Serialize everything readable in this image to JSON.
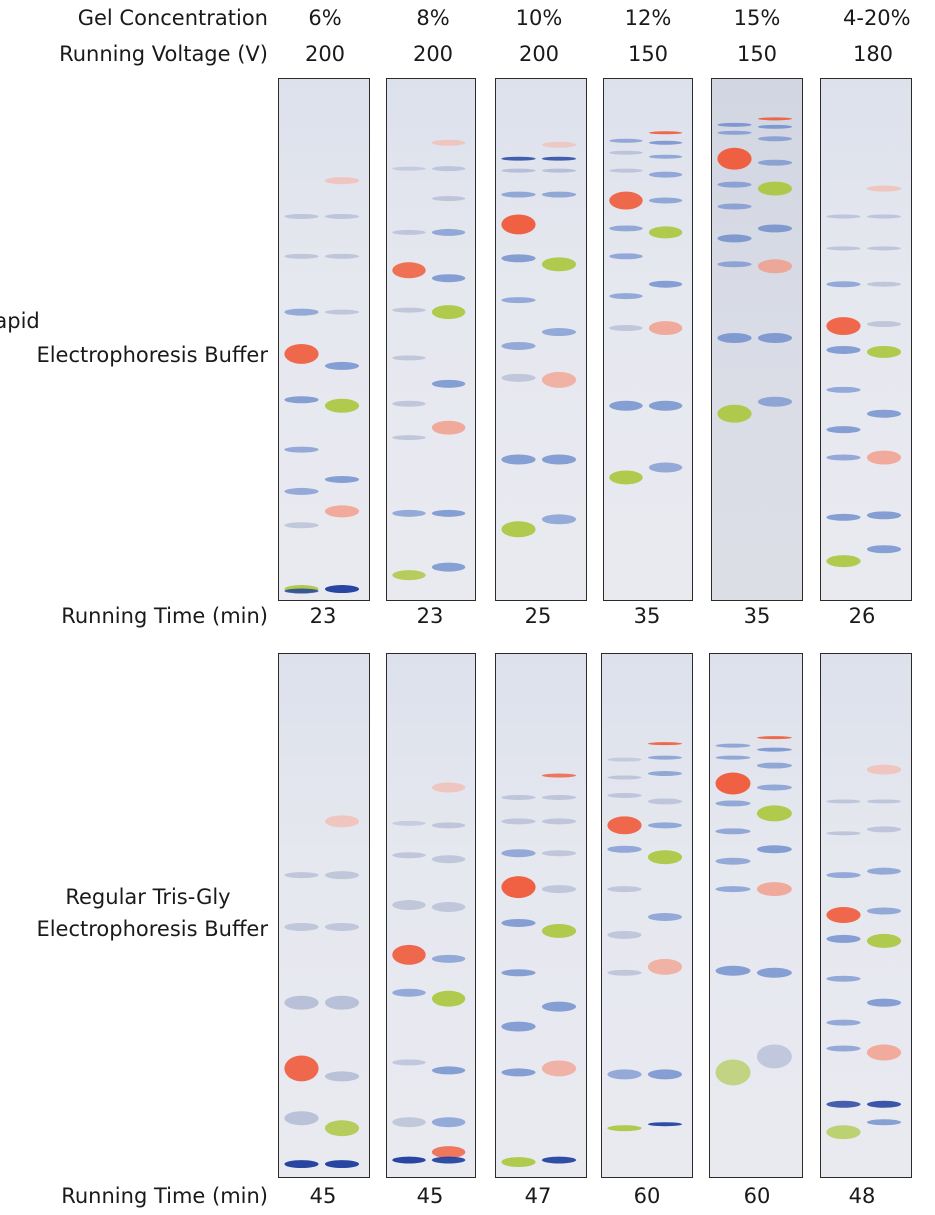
{
  "headers": {
    "gel_concentration_label": "Gel Concentration",
    "running_voltage_label": "Running Voltage (V)",
    "running_time_label": "Running Time (min)"
  },
  "columns": [
    {
      "concentration": "6%",
      "voltage": "200"
    },
    {
      "concentration": "8%",
      "voltage": "200"
    },
    {
      "concentration": "10%",
      "voltage": "200"
    },
    {
      "concentration": "12%",
      "voltage": "150"
    },
    {
      "concentration": "15%",
      "voltage": "150"
    },
    {
      "concentration": "4-20%",
      "voltage": "180"
    }
  ],
  "rows": [
    {
      "label_line1": "Rapid",
      "label_line2": "Electrophoresis Buffer",
      "running_times": [
        "23",
        "23",
        "25",
        "35",
        "35",
        "26"
      ]
    },
    {
      "label_line1": "Regular Tris-Gly",
      "label_line2": "Electrophoresis Buffer",
      "running_times": [
        "45",
        "45",
        "47",
        "60",
        "60",
        "48"
      ]
    }
  ],
  "band_colors": {
    "blue": "#5b7fc8",
    "faint": "#9aa6c8",
    "dark": "#1c3c9c",
    "red": "#f05a3a",
    "green": "#a9c63a",
    "pink": "#f39a86",
    "lightred": "#f6b0a0"
  }
}
